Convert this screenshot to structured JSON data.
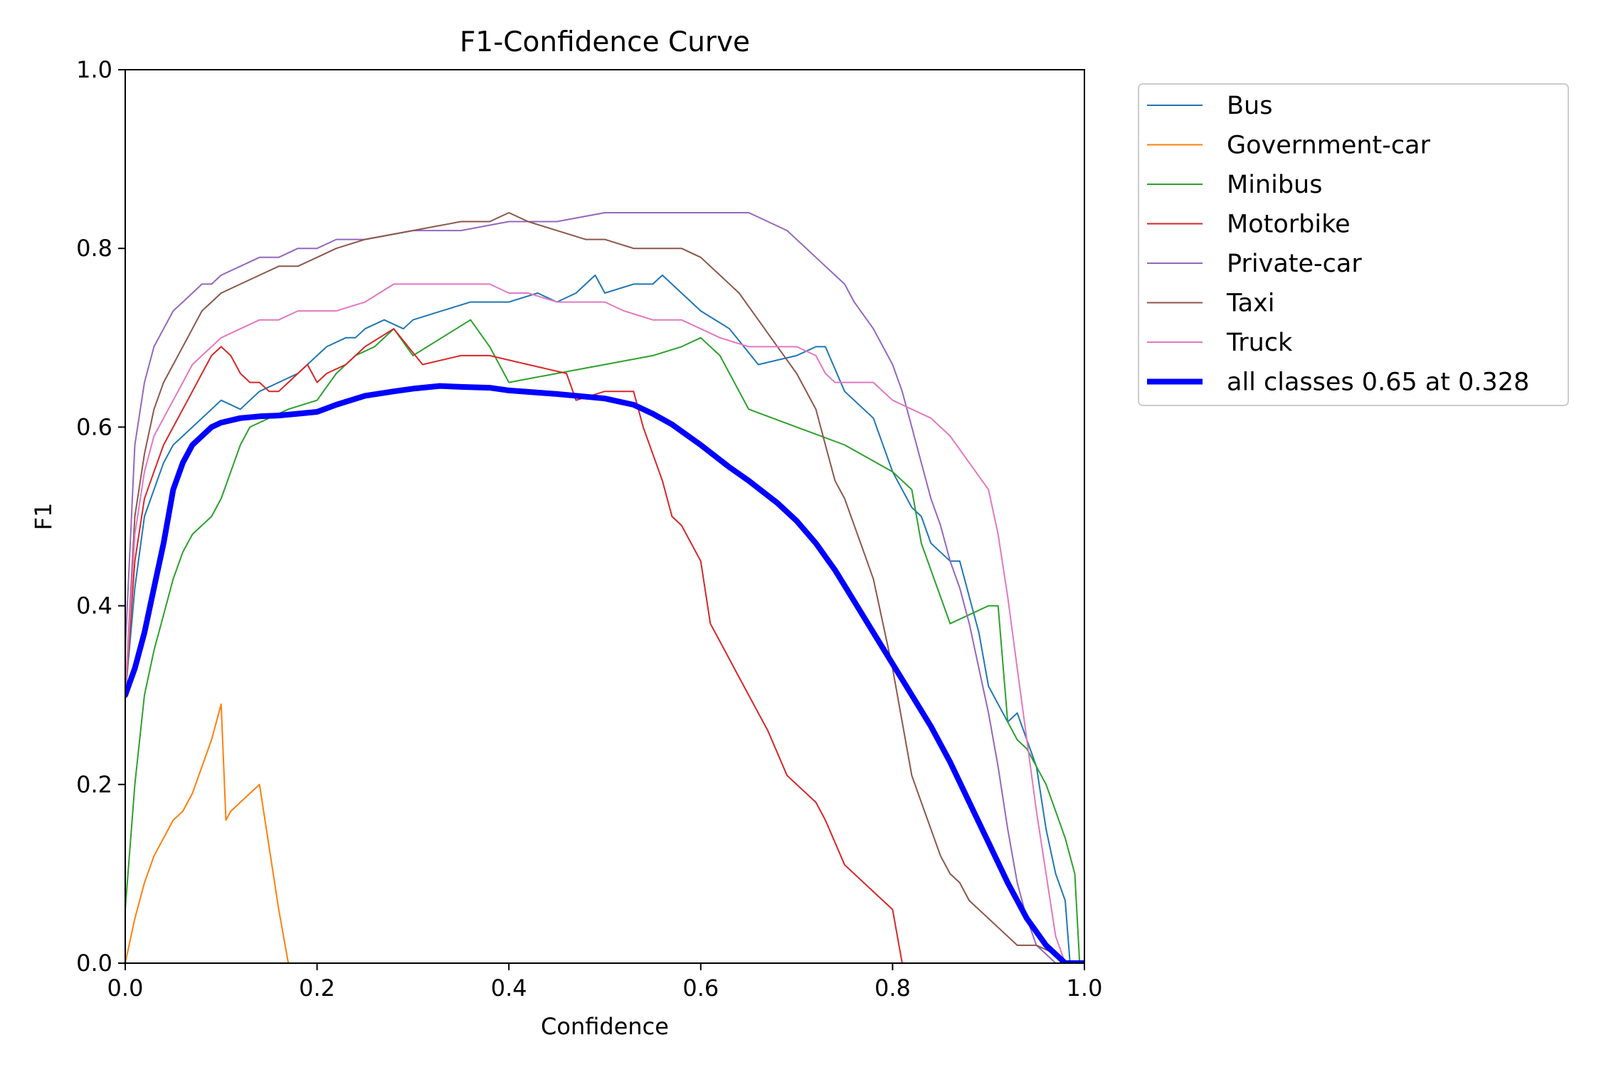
{
  "chart_data": {
    "type": "line",
    "title": "F1-Confidence Curve",
    "xlabel": "Confidence",
    "ylabel": "F1",
    "xlim": [
      0,
      1
    ],
    "ylim": [
      0,
      1
    ],
    "xticks": [
      "0.0",
      "0.2",
      "0.4",
      "0.6",
      "0.8",
      "1.0"
    ],
    "yticks": [
      "0.0",
      "0.2",
      "0.4",
      "0.6",
      "0.8",
      "1.0"
    ],
    "grid": false,
    "legend_position": "outside-top-right",
    "series": [
      {
        "name": "Bus",
        "color": "#1f77b4",
        "width": 2,
        "x": [
          0,
          0.01,
          0.02,
          0.03,
          0.04,
          0.05,
          0.07,
          0.09,
          0.1,
          0.12,
          0.13,
          0.14,
          0.16,
          0.18,
          0.2,
          0.21,
          0.23,
          0.24,
          0.25,
          0.27,
          0.29,
          0.3,
          0.33,
          0.36,
          0.4,
          0.43,
          0.45,
          0.47,
          0.48,
          0.49,
          0.5,
          0.53,
          0.55,
          0.56,
          0.6,
          0.63,
          0.66,
          0.7,
          0.72,
          0.73,
          0.75,
          0.78,
          0.8,
          0.82,
          0.83,
          0.84,
          0.86,
          0.87,
          0.88,
          0.89,
          0.9,
          0.91,
          0.92,
          0.93,
          0.95,
          0.96,
          0.97,
          0.98,
          0.985
        ],
        "y": [
          0.3,
          0.42,
          0.5,
          0.53,
          0.56,
          0.58,
          0.6,
          0.62,
          0.63,
          0.62,
          0.63,
          0.64,
          0.65,
          0.66,
          0.68,
          0.69,
          0.7,
          0.7,
          0.71,
          0.72,
          0.71,
          0.72,
          0.73,
          0.74,
          0.74,
          0.75,
          0.74,
          0.75,
          0.76,
          0.77,
          0.75,
          0.76,
          0.76,
          0.77,
          0.73,
          0.71,
          0.67,
          0.68,
          0.69,
          0.69,
          0.64,
          0.61,
          0.55,
          0.51,
          0.5,
          0.47,
          0.45,
          0.45,
          0.41,
          0.37,
          0.31,
          0.29,
          0.27,
          0.28,
          0.22,
          0.15,
          0.1,
          0.07,
          0.0
        ]
      },
      {
        "name": "Government-car",
        "color": "#ff7f0e",
        "width": 2,
        "x": [
          0,
          0.01,
          0.02,
          0.03,
          0.04,
          0.05,
          0.06,
          0.07,
          0.08,
          0.09,
          0.1,
          0.105,
          0.11,
          0.12,
          0.13,
          0.14,
          0.15,
          0.16,
          0.17,
          0.18,
          1.0
        ],
        "y": [
          0.0,
          0.05,
          0.09,
          0.12,
          0.14,
          0.16,
          0.17,
          0.19,
          0.22,
          0.25,
          0.29,
          0.16,
          0.17,
          0.18,
          0.19,
          0.2,
          0.13,
          0.06,
          0.0,
          0.0,
          0.0
        ]
      },
      {
        "name": "Minibus",
        "color": "#2ca02c",
        "width": 2,
        "x": [
          0,
          0.01,
          0.02,
          0.03,
          0.04,
          0.05,
          0.06,
          0.07,
          0.08,
          0.09,
          0.1,
          0.11,
          0.12,
          0.13,
          0.15,
          0.17,
          0.2,
          0.22,
          0.24,
          0.26,
          0.28,
          0.3,
          0.33,
          0.36,
          0.38,
          0.4,
          0.45,
          0.5,
          0.55,
          0.58,
          0.6,
          0.62,
          0.65,
          0.7,
          0.75,
          0.8,
          0.82,
          0.83,
          0.84,
          0.85,
          0.86,
          0.88,
          0.9,
          0.91,
          0.92,
          0.93,
          0.94,
          0.95,
          0.96,
          0.97,
          0.98,
          0.99,
          0.995,
          1.0
        ],
        "y": [
          0.06,
          0.2,
          0.3,
          0.35,
          0.39,
          0.43,
          0.46,
          0.48,
          0.49,
          0.5,
          0.52,
          0.55,
          0.58,
          0.6,
          0.61,
          0.62,
          0.63,
          0.66,
          0.68,
          0.69,
          0.71,
          0.68,
          0.7,
          0.72,
          0.69,
          0.65,
          0.66,
          0.67,
          0.68,
          0.69,
          0.7,
          0.68,
          0.62,
          0.6,
          0.58,
          0.55,
          0.53,
          0.47,
          0.44,
          0.41,
          0.38,
          0.39,
          0.4,
          0.4,
          0.27,
          0.25,
          0.24,
          0.22,
          0.2,
          0.17,
          0.14,
          0.1,
          0.0,
          0.0
        ]
      },
      {
        "name": "Motorbike",
        "color": "#d62728",
        "width": 2,
        "x": [
          0,
          0.01,
          0.02,
          0.03,
          0.04,
          0.05,
          0.06,
          0.07,
          0.08,
          0.09,
          0.1,
          0.11,
          0.12,
          0.13,
          0.14,
          0.15,
          0.16,
          0.17,
          0.18,
          0.19,
          0.2,
          0.21,
          0.23,
          0.25,
          0.28,
          0.31,
          0.35,
          0.38,
          0.42,
          0.46,
          0.47,
          0.5,
          0.53,
          0.54,
          0.56,
          0.57,
          0.58,
          0.6,
          0.61,
          0.62,
          0.64,
          0.67,
          0.69,
          0.72,
          0.73,
          0.75,
          0.78,
          0.8,
          0.81,
          1.0
        ],
        "y": [
          0.3,
          0.45,
          0.52,
          0.55,
          0.58,
          0.6,
          0.62,
          0.64,
          0.66,
          0.68,
          0.69,
          0.68,
          0.66,
          0.65,
          0.65,
          0.64,
          0.64,
          0.65,
          0.66,
          0.67,
          0.65,
          0.66,
          0.67,
          0.69,
          0.71,
          0.67,
          0.68,
          0.68,
          0.67,
          0.66,
          0.63,
          0.64,
          0.64,
          0.6,
          0.54,
          0.5,
          0.49,
          0.45,
          0.38,
          0.36,
          0.32,
          0.26,
          0.21,
          0.18,
          0.16,
          0.11,
          0.08,
          0.06,
          0.0,
          0.0
        ]
      },
      {
        "name": "Private-car",
        "color": "#9467bd",
        "width": 2,
        "x": [
          0,
          0.01,
          0.02,
          0.03,
          0.04,
          0.05,
          0.06,
          0.07,
          0.08,
          0.09,
          0.1,
          0.12,
          0.14,
          0.16,
          0.18,
          0.2,
          0.22,
          0.25,
          0.3,
          0.35,
          0.4,
          0.45,
          0.5,
          0.55,
          0.6,
          0.63,
          0.65,
          0.67,
          0.69,
          0.71,
          0.73,
          0.75,
          0.76,
          0.78,
          0.8,
          0.81,
          0.82,
          0.83,
          0.84,
          0.85,
          0.86,
          0.87,
          0.88,
          0.89,
          0.9,
          0.91,
          0.92,
          0.93,
          0.94,
          0.95,
          0.96,
          0.97,
          0.98
        ],
        "y": [
          0.35,
          0.58,
          0.65,
          0.69,
          0.71,
          0.73,
          0.74,
          0.75,
          0.76,
          0.76,
          0.77,
          0.78,
          0.79,
          0.79,
          0.8,
          0.8,
          0.81,
          0.81,
          0.82,
          0.82,
          0.83,
          0.83,
          0.84,
          0.84,
          0.84,
          0.84,
          0.84,
          0.83,
          0.82,
          0.8,
          0.78,
          0.76,
          0.74,
          0.71,
          0.67,
          0.64,
          0.6,
          0.56,
          0.52,
          0.49,
          0.45,
          0.42,
          0.38,
          0.33,
          0.28,
          0.22,
          0.15,
          0.09,
          0.05,
          0.02,
          0.01,
          0.0,
          0.0
        ]
      },
      {
        "name": "Taxi",
        "color": "#8c564b",
        "width": 2,
        "x": [
          0,
          0.01,
          0.02,
          0.03,
          0.04,
          0.05,
          0.06,
          0.07,
          0.08,
          0.09,
          0.1,
          0.12,
          0.14,
          0.16,
          0.18,
          0.2,
          0.22,
          0.25,
          0.3,
          0.35,
          0.38,
          0.4,
          0.42,
          0.45,
          0.48,
          0.5,
          0.53,
          0.55,
          0.58,
          0.6,
          0.62,
          0.64,
          0.66,
          0.68,
          0.7,
          0.72,
          0.73,
          0.74,
          0.75,
          0.76,
          0.77,
          0.78,
          0.79,
          0.8,
          0.81,
          0.82,
          0.83,
          0.84,
          0.85,
          0.86,
          0.87,
          0.88,
          0.89,
          0.9,
          0.91,
          0.92,
          0.93,
          0.95,
          0.97,
          0.98
        ],
        "y": [
          0.3,
          0.5,
          0.57,
          0.62,
          0.65,
          0.67,
          0.69,
          0.71,
          0.73,
          0.74,
          0.75,
          0.76,
          0.77,
          0.78,
          0.78,
          0.79,
          0.8,
          0.81,
          0.82,
          0.83,
          0.83,
          0.84,
          0.83,
          0.82,
          0.81,
          0.81,
          0.8,
          0.8,
          0.8,
          0.79,
          0.77,
          0.75,
          0.72,
          0.69,
          0.66,
          0.62,
          0.58,
          0.54,
          0.52,
          0.49,
          0.46,
          0.43,
          0.38,
          0.33,
          0.27,
          0.21,
          0.18,
          0.15,
          0.12,
          0.1,
          0.09,
          0.07,
          0.06,
          0.05,
          0.04,
          0.03,
          0.02,
          0.02,
          0.01,
          0.0
        ]
      },
      {
        "name": "Truck",
        "color": "#e377c2",
        "width": 2,
        "x": [
          0,
          0.01,
          0.02,
          0.03,
          0.04,
          0.05,
          0.06,
          0.07,
          0.08,
          0.09,
          0.1,
          0.12,
          0.14,
          0.16,
          0.18,
          0.2,
          0.22,
          0.25,
          0.28,
          0.3,
          0.32,
          0.35,
          0.38,
          0.4,
          0.42,
          0.45,
          0.48,
          0.5,
          0.52,
          0.55,
          0.58,
          0.6,
          0.62,
          0.65,
          0.68,
          0.7,
          0.72,
          0.73,
          0.74,
          0.76,
          0.78,
          0.8,
          0.82,
          0.84,
          0.86,
          0.88,
          0.9,
          0.91,
          0.92,
          0.93,
          0.94,
          0.95,
          0.96,
          0.97,
          0.98
        ],
        "y": [
          0.3,
          0.48,
          0.55,
          0.59,
          0.61,
          0.63,
          0.65,
          0.67,
          0.68,
          0.69,
          0.7,
          0.71,
          0.72,
          0.72,
          0.73,
          0.73,
          0.73,
          0.74,
          0.76,
          0.76,
          0.76,
          0.76,
          0.76,
          0.75,
          0.75,
          0.74,
          0.74,
          0.74,
          0.73,
          0.72,
          0.72,
          0.71,
          0.7,
          0.69,
          0.69,
          0.69,
          0.68,
          0.66,
          0.65,
          0.65,
          0.65,
          0.63,
          0.62,
          0.61,
          0.59,
          0.56,
          0.53,
          0.48,
          0.41,
          0.33,
          0.25,
          0.17,
          0.1,
          0.03,
          0.0
        ]
      },
      {
        "name": "all classes 0.65 at 0.328",
        "color": "#0000ff",
        "width": 8,
        "x": [
          0,
          0.01,
          0.02,
          0.03,
          0.04,
          0.05,
          0.06,
          0.07,
          0.08,
          0.09,
          0.1,
          0.12,
          0.14,
          0.16,
          0.18,
          0.2,
          0.22,
          0.25,
          0.28,
          0.3,
          0.328,
          0.35,
          0.38,
          0.4,
          0.45,
          0.5,
          0.53,
          0.55,
          0.57,
          0.6,
          0.63,
          0.65,
          0.68,
          0.7,
          0.72,
          0.74,
          0.76,
          0.78,
          0.8,
          0.82,
          0.84,
          0.86,
          0.88,
          0.9,
          0.92,
          0.94,
          0.96,
          0.98,
          1.0
        ],
        "y": [
          0.3,
          0.33,
          0.37,
          0.42,
          0.47,
          0.53,
          0.56,
          0.58,
          0.59,
          0.6,
          0.605,
          0.61,
          0.612,
          0.613,
          0.615,
          0.617,
          0.625,
          0.635,
          0.64,
          0.643,
          0.646,
          0.645,
          0.644,
          0.641,
          0.637,
          0.632,
          0.625,
          0.615,
          0.603,
          0.58,
          0.555,
          0.54,
          0.515,
          0.495,
          0.47,
          0.44,
          0.405,
          0.37,
          0.335,
          0.3,
          0.265,
          0.225,
          0.18,
          0.135,
          0.09,
          0.05,
          0.02,
          0.0,
          0.0
        ]
      }
    ]
  }
}
